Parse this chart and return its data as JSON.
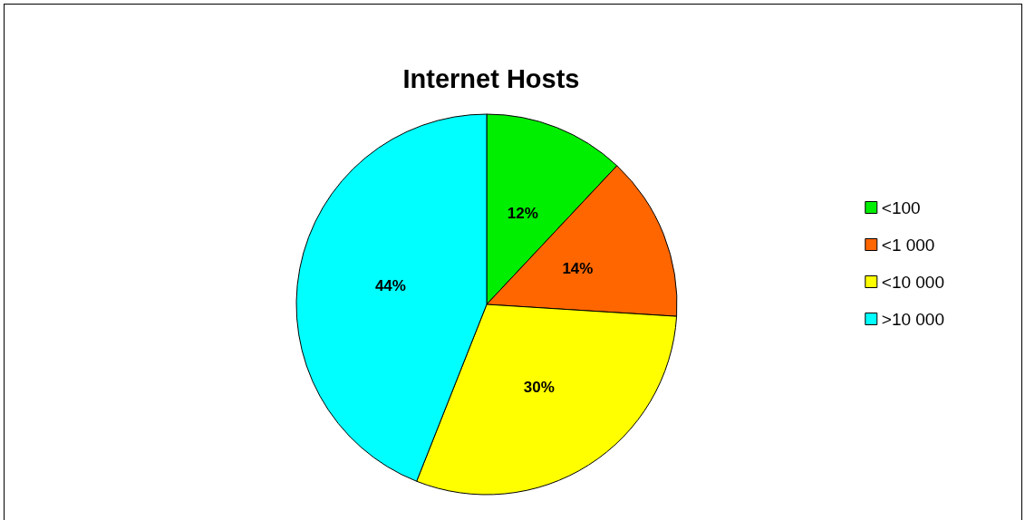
{
  "chart_data": {
    "type": "pie",
    "title": "Internet Hosts",
    "categories": [
      "<100",
      "<1 000",
      "<10 000",
      ">10 000"
    ],
    "values": [
      12,
      14,
      30,
      44
    ],
    "value_labels": [
      "12%",
      "14%",
      "30%",
      "44%"
    ],
    "colors": [
      "#00ee00",
      "#ff6600",
      "#ffff00",
      "#00ffff"
    ],
    "legend": "right"
  }
}
